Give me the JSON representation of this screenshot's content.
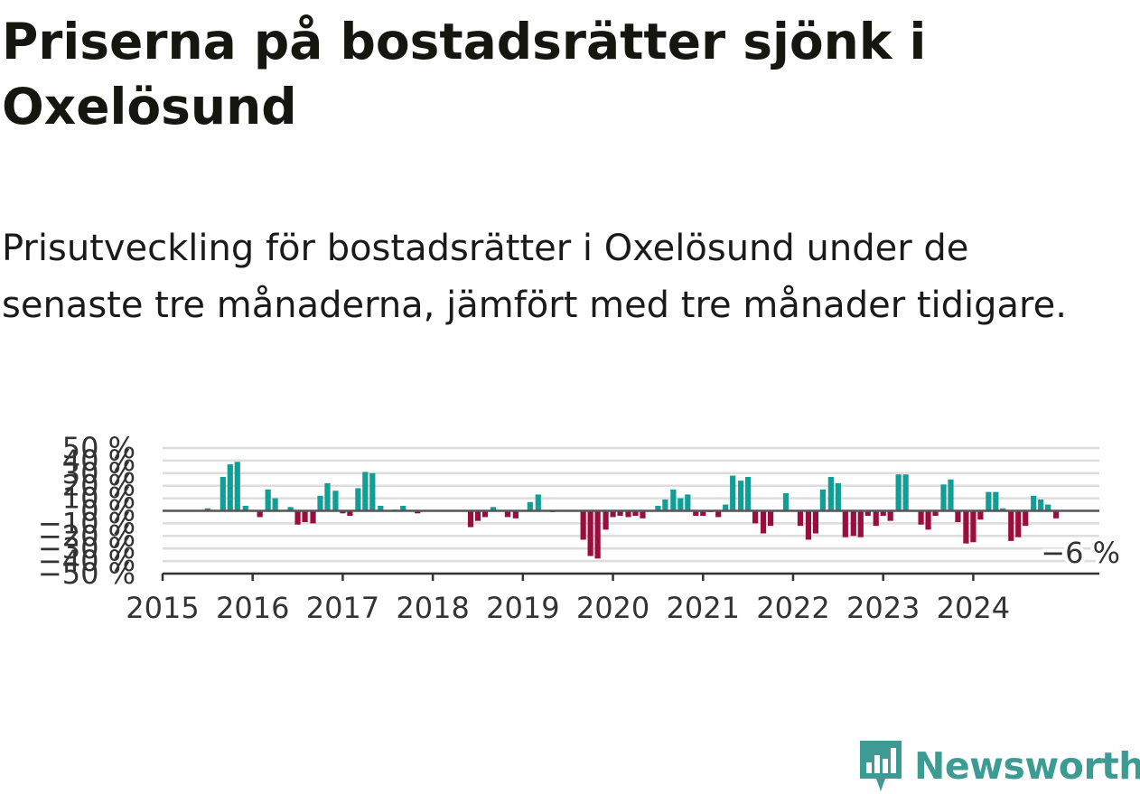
{
  "header": {
    "title": "Priserna på bostadsrätter sjönk i Oxelösund",
    "subtitle": "Prisutveckling för bostadsrätter i Oxelösund under de senaste tre månaderna, jämfört med tre månader tidigare."
  },
  "brand": {
    "name": "Newsworthy",
    "color": "#3d9b94",
    "icon": "newsworthy-logo-icon"
  },
  "chart_data": {
    "type": "bar",
    "ylim": [
      -50,
      50
    ],
    "yticks": [
      50,
      40,
      30,
      20,
      10,
      0,
      -10,
      -20,
      -30,
      -40,
      -50
    ],
    "ytick_labels": [
      "50 %",
      "40 %",
      "30 %",
      "20 %",
      "10 %",
      "0 %",
      "−10 %",
      "−20 %",
      "−30 %",
      "−40 %",
      "−50 %"
    ],
    "xlim": [
      2015.0,
      2025.4
    ],
    "xticks": [
      2015,
      2016,
      2017,
      2018,
      2019,
      2020,
      2021,
      2022,
      2023,
      2024
    ],
    "xtick_labels": [
      "2015",
      "2016",
      "2017",
      "2018",
      "2019",
      "2020",
      "2021",
      "2022",
      "2023",
      "2024"
    ],
    "grid": true,
    "colors": {
      "positive": "#0f9f96",
      "negative": "#990e3d",
      "zero_line": "#555555",
      "grid": "#dddddd"
    },
    "annotation": {
      "text": "−6 %",
      "x": 2024.9,
      "y": -6
    },
    "x": [
      2015.5,
      2015.67,
      2015.75,
      2015.83,
      2015.92,
      2016.08,
      2016.17,
      2016.25,
      2016.42,
      2016.5,
      2016.58,
      2016.67,
      2016.75,
      2016.83,
      2016.92,
      2017.0,
      2017.08,
      2017.17,
      2017.25,
      2017.33,
      2017.42,
      2017.58,
      2017.67,
      2017.83,
      2018.42,
      2018.5,
      2018.58,
      2018.67,
      2018.83,
      2018.92,
      2019.08,
      2019.17,
      2019.33,
      2019.67,
      2019.75,
      2019.83,
      2019.92,
      2020.0,
      2020.08,
      2020.17,
      2020.25,
      2020.33,
      2020.5,
      2020.58,
      2020.67,
      2020.75,
      2020.83,
      2020.92,
      2021.0,
      2021.08,
      2021.17,
      2021.25,
      2021.33,
      2021.42,
      2021.5,
      2021.58,
      2021.67,
      2021.75,
      2021.92,
      2022.08,
      2022.17,
      2022.25,
      2022.33,
      2022.42,
      2022.5,
      2022.58,
      2022.67,
      2022.75,
      2022.83,
      2022.92,
      2023.0,
      2023.08,
      2023.17,
      2023.25,
      2023.42,
      2023.5,
      2023.58,
      2023.67,
      2023.75,
      2023.83,
      2023.92,
      2024.0,
      2024.08,
      2024.17,
      2024.25,
      2024.33,
      2024.42,
      2024.5,
      2024.58,
      2024.67,
      2024.75,
      2024.83,
      2024.92
    ],
    "values": [
      2,
      27,
      37,
      39,
      4,
      -5,
      17,
      10,
      3,
      -11,
      -9,
      -10,
      12,
      22,
      16,
      -2,
      -4,
      18,
      31,
      30,
      4,
      1,
      4,
      -2,
      -13,
      -8,
      -5,
      3,
      -5,
      -6,
      7,
      13,
      -1,
      -23,
      -36,
      -38,
      -15,
      -5,
      -4,
      -5,
      -4,
      -6,
      4,
      9,
      17,
      10,
      13,
      -4,
      -4,
      -1,
      -5,
      5,
      28,
      24,
      27,
      -10,
      -18,
      -12,
      14,
      -12,
      -23,
      -18,
      17,
      27,
      22,
      -21,
      -20,
      -21,
      -4,
      -12,
      -4,
      -8,
      29,
      29,
      -11,
      -15,
      -4,
      21,
      25,
      -9,
      -26,
      -25,
      -7,
      15,
      15,
      2,
      -24,
      -21,
      -12,
      12,
      9,
      5,
      -6
    ]
  }
}
